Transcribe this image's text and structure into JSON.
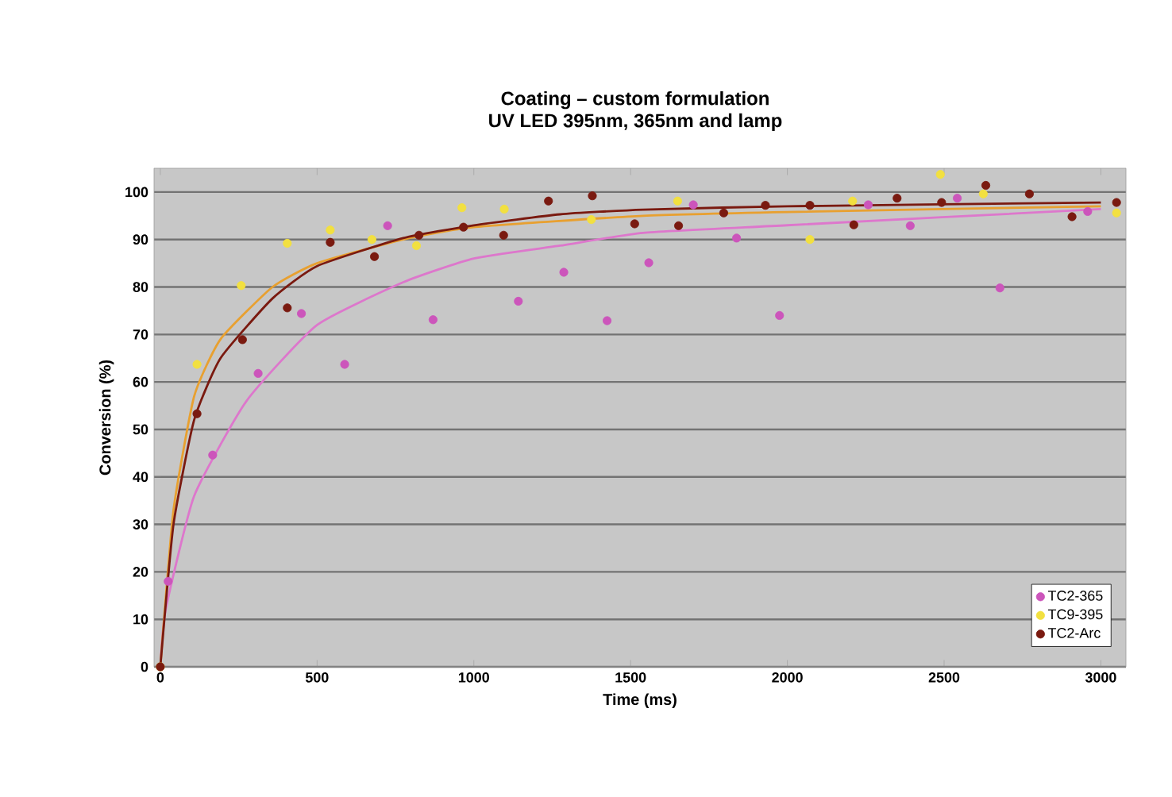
{
  "chart_data": {
    "type": "scatter",
    "title": "Coating – custom formulation\nUV LED 395nm, 365nm and lamp",
    "xlabel": "Time (ms)",
    "ylabel": "Conversion (%)",
    "xlim": [
      -20,
      3080
    ],
    "ylim": [
      0,
      105
    ],
    "xticks": [
      0,
      500,
      1000,
      1500,
      2000,
      2500,
      3000
    ],
    "yticks": [
      0,
      10,
      20,
      30,
      40,
      50,
      60,
      70,
      80,
      90,
      100
    ],
    "grid": "y",
    "legend": "bottom right",
    "marker": "circle",
    "series": [
      {
        "name": "TC2-365",
        "color": "#cc55bb",
        "x": [
          25,
          167,
          312,
          450,
          588,
          725,
          870,
          1142,
          1287,
          1425,
          1558,
          1700,
          1838,
          1975,
          2258,
          2392,
          2542,
          2678,
          2958
        ],
        "values": [
          18,
          44.6,
          61.8,
          74.4,
          63.7,
          92.9,
          73.1,
          77,
          83.1,
          72.9,
          85.1,
          97.3,
          90.3,
          74,
          97.3,
          92.9,
          98.7,
          79.8,
          95.9
        ]
      },
      {
        "name": "TC9-395",
        "color": "#f2e040",
        "x": [
          0,
          117,
          258,
          405,
          542,
          675,
          817,
          962,
          1097,
          1375,
          1650,
          2072,
          2208,
          2488,
          2625,
          3050
        ],
        "values": [
          0,
          63.7,
          80.3,
          89.2,
          92,
          90,
          88.7,
          96.7,
          96.4,
          94.2,
          98.1,
          90,
          98.1,
          103.7,
          99.6,
          95.6
        ]
      },
      {
        "name": "TC2-Arc",
        "color": "#7a1a10",
        "x": [
          0,
          117,
          262,
          405,
          542,
          683,
          825,
          967,
          1095,
          1238,
          1378,
          1513,
          1653,
          1797,
          1930,
          2072,
          2212,
          2350,
          2492,
          2633,
          2772,
          2908,
          3050
        ],
        "values": [
          0,
          53.3,
          68.9,
          75.6,
          89.4,
          86.4,
          90.9,
          92.6,
          90.9,
          98.1,
          99.2,
          93.3,
          92.9,
          95.6,
          97.2,
          97.2,
          93.1,
          98.7,
          97.8,
          101.4,
          99.6,
          94.8,
          97.8
        ]
      },
      {
        "type": "line",
        "marker": "none",
        "color": "#dd77cc",
        "x": [
          0,
          17,
          108,
          275,
          500,
          775,
          1000,
          1275,
          1540,
          2000,
          3000
        ],
        "values": [
          0,
          12,
          36,
          56,
          72,
          81,
          86,
          88.7,
          91.4,
          93,
          96.4
        ]
      },
      {
        "type": "line",
        "marker": "none",
        "color": "#e8a030",
        "x": [
          0,
          42,
          108,
          192,
          358,
          500,
          775,
          1000,
          1540,
          2000,
          3000
        ],
        "values": [
          0,
          33,
          57,
          69,
          80,
          85,
          90,
          92.6,
          95,
          95.8,
          97
        ]
      },
      {
        "type": "line",
        "marker": "none",
        "color": "#7a1a10",
        "x": [
          0,
          42,
          108,
          192,
          358,
          500,
          775,
          1000,
          1275,
          1540,
          2000,
          3000
        ],
        "values": [
          0,
          30,
          52,
          65,
          77.6,
          84.4,
          90.3,
          93,
          95.3,
          96.3,
          97,
          97.8
        ]
      }
    ]
  }
}
